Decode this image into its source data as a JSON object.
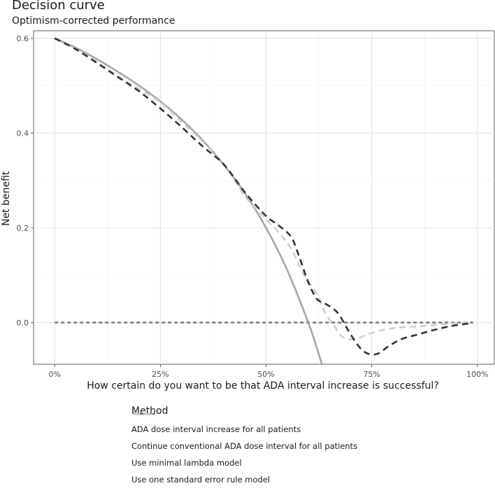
{
  "chart_data": {
    "type": "line",
    "title": "Decision curve",
    "subtitle": "Optimism-corrected performance",
    "xlabel": "How certain do you want to be that ADA interval increase is successful?",
    "ylabel": "Net benefit",
    "xlim": [
      -0.05,
      1.04
    ],
    "ylim": [
      -0.088,
      0.616
    ],
    "x_ticks": [
      0,
      0.25,
      0.5,
      0.75,
      1.0
    ],
    "x_tick_labels": [
      "0%",
      "25%",
      "50%",
      "75%",
      "100%"
    ],
    "y_ticks": [
      0.0,
      0.2,
      0.4,
      0.6
    ],
    "y_tick_labels": [
      "0.0",
      "0.2",
      "0.4",
      "0.6"
    ],
    "grid": true,
    "legend_title": "Method",
    "legend_position": "bottom",
    "series": [
      {
        "name": "ADA dose interval increase for all patients",
        "color": "#a6a6a6",
        "dash": "solid",
        "x": [
          0,
          0.05,
          0.1,
          0.15,
          0.2,
          0.25,
          0.3,
          0.35,
          0.4,
          0.45,
          0.5,
          0.55,
          0.6,
          0.62,
          0.64
        ],
        "y": [
          0.6,
          0.58,
          0.556,
          0.529,
          0.5,
          0.467,
          0.429,
          0.385,
          0.333,
          0.273,
          0.2,
          0.111,
          0.0,
          -0.053,
          -0.111
        ]
      },
      {
        "name": "Continue conventional ADA dose interval for all patients",
        "color": "#777777",
        "dash": "dotted",
        "x": [
          0,
          0.99
        ],
        "y": [
          0,
          0
        ]
      },
      {
        "name": "Use minimal lambda model",
        "color": "#333333",
        "dash": "dashed",
        "x": [
          0,
          0.05,
          0.1,
          0.15,
          0.2,
          0.25,
          0.3,
          0.35,
          0.4,
          0.45,
          0.5,
          0.53,
          0.56,
          0.58,
          0.6,
          0.62,
          0.64,
          0.67,
          0.7,
          0.73,
          0.76,
          0.79,
          0.82,
          0.86,
          0.9,
          0.94,
          0.98
        ],
        "y": [
          0.6,
          0.577,
          0.548,
          0.518,
          0.488,
          0.452,
          0.413,
          0.372,
          0.334,
          0.275,
          0.225,
          0.205,
          0.18,
          0.135,
          0.085,
          0.05,
          0.04,
          0.02,
          -0.025,
          -0.06,
          -0.067,
          -0.05,
          -0.035,
          -0.025,
          -0.015,
          -0.007,
          -0.002
        ]
      },
      {
        "name": "Use one standard error rule model",
        "color": "#cccccc",
        "dash": "dashed",
        "x": [
          0,
          0.05,
          0.1,
          0.15,
          0.2,
          0.25,
          0.3,
          0.35,
          0.4,
          0.45,
          0.5,
          0.53,
          0.56,
          0.59,
          0.62,
          0.64,
          0.66,
          0.68,
          0.71,
          0.74,
          0.78,
          0.82,
          0.86,
          0.9,
          0.94,
          0.98
        ],
        "y": [
          0.6,
          0.577,
          0.55,
          0.52,
          0.493,
          0.465,
          0.424,
          0.382,
          0.334,
          0.267,
          0.218,
          0.19,
          0.155,
          0.1,
          0.06,
          0.02,
          -0.005,
          -0.03,
          -0.035,
          -0.025,
          -0.015,
          -0.01,
          -0.008,
          -0.005,
          -0.002,
          0.0
        ]
      }
    ]
  }
}
